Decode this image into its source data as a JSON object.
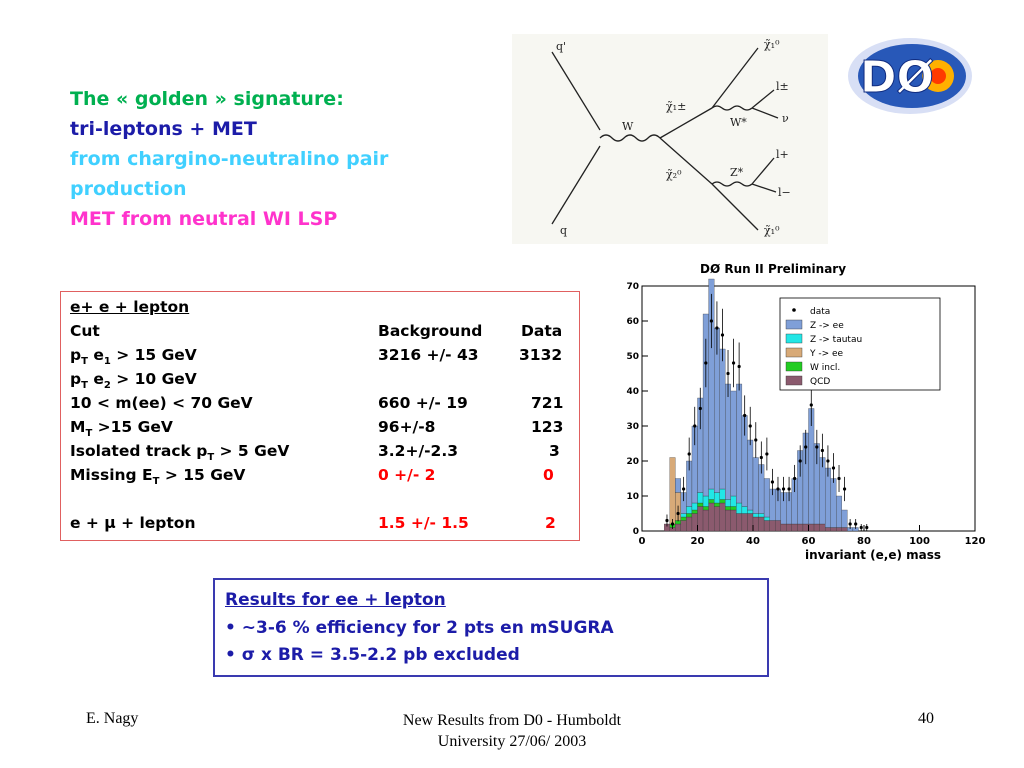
{
  "title_lines": {
    "line1": "The « golden » signature:",
    "line2": "tri-leptons + MET",
    "line3": "from chargino-neutralino pair",
    "line4": "production",
    "line5": "MET from neutral WI LSP"
  },
  "colors": {
    "title_green": "#00b050",
    "title_blue": "#1c1ca8",
    "title_cyan": "#40d0ff",
    "title_magenta": "#ff33cc",
    "highlight_red": "#ff0000",
    "table_border": "#e06060",
    "results_border": "#3a3ab0"
  },
  "feynman": {
    "q_prime": "q'",
    "q": "q",
    "W": "W",
    "chargino": "χ̃₁±",
    "neutralino2": "χ̃₂⁰",
    "W_star": "W*",
    "Z_star": "Z*",
    "lepton_pm": "l±",
    "nu": "ν",
    "l_plus": "l+",
    "l_minus": "l−",
    "chi1_top": "χ̃₁⁰",
    "chi1_bottom": "χ̃₁⁰"
  },
  "logo": {
    "text": "DØ"
  },
  "cut_table": {
    "heading": "e+ e + lepton",
    "col_cut": "Cut",
    "col_bg": "Background",
    "col_data": "Data",
    "rows": [
      {
        "cut_pre": "p",
        "cut_sub1": "T",
        "cut_mid": " e",
        "cut_sub2": "1",
        "cut_post": " > 15 GeV",
        "bg": "3216 +/- 43",
        "data": "3132"
      },
      {
        "cut_pre": "p",
        "cut_sub1": "T",
        "cut_mid": " e",
        "cut_sub2": "2",
        "cut_post": " > 10 GeV",
        "bg": "",
        "data": ""
      },
      {
        "cut": "10 < m(ee) < 70 GeV",
        "bg": "660 +/- 19",
        "data": "721"
      },
      {
        "cut_pre": "M",
        "cut_sub1": "T",
        "cut_post": " >15 GeV",
        "bg": "96+/-8",
        "data": "123"
      },
      {
        "cut_pre": "Isolated track p",
        "cut_sub1": "T",
        "cut_post": " > 5 GeV",
        "bg": "3.2+/-2.3",
        "data": "3"
      },
      {
        "cut_pre": "Missing E",
        "cut_sub1": "T",
        "cut_post": " > 15 GeV",
        "bg": "0 +/- 2",
        "data": "0"
      },
      {
        "cut": "e + μ + lepton",
        "bg": "1.5 +/- 1.5",
        "data": "2"
      }
    ]
  },
  "results": {
    "heading": "Results for ee + lepton",
    "bullet1": "• ~3-6 % efficiency for 2 pts en mSUGRA",
    "bullet2": "• σ x BR = 3.5-2.2 pb excluded"
  },
  "footer": {
    "left": "E. Nagy",
    "center_line1": "New Results from D0 - Humboldt",
    "center_line2": "University  27/06/ 2003",
    "right": "40"
  },
  "chart_data": {
    "type": "bar",
    "title": "DØ Run II Preliminary",
    "xlabel": "invariant (e,e) mass",
    "ylabel": "",
    "xlim": [
      0,
      120
    ],
    "ylim": [
      0,
      70
    ],
    "x_ticks": [
      0,
      20,
      40,
      60,
      80,
      100,
      120
    ],
    "y_ticks": [
      0,
      10,
      20,
      30,
      40,
      50,
      60,
      70
    ],
    "bin_width": 2,
    "bin_start": 0,
    "legend_position": "top-right",
    "series": [
      {
        "name": "data",
        "style": "points",
        "color": "#000000",
        "values": [
          0,
          0,
          0,
          0,
          3,
          2,
          5,
          12,
          22,
          30,
          35,
          48,
          60,
          58,
          56,
          45,
          48,
          47,
          33,
          30,
          26,
          21,
          22,
          14,
          12,
          12,
          12,
          15,
          20,
          24,
          36,
          24,
          23,
          20,
          18,
          15,
          12,
          2,
          2,
          1,
          1,
          0,
          0,
          0,
          0,
          0,
          0,
          0,
          0,
          0,
          0,
          0,
          0,
          0,
          0,
          0,
          0,
          0,
          0,
          0
        ]
      },
      {
        "name": "QCD",
        "color": "#8b5a6e",
        "values": [
          0,
          0,
          0,
          0,
          2,
          1,
          2,
          3,
          4,
          5,
          7,
          6,
          8,
          7,
          8,
          6,
          6,
          5,
          5,
          5,
          4,
          4,
          3,
          3,
          3,
          2,
          2,
          2,
          2,
          2,
          2,
          2,
          2,
          1,
          1,
          1,
          1,
          0,
          0,
          0,
          0,
          0,
          0,
          0,
          0,
          0,
          0,
          0,
          0,
          0,
          0,
          0,
          0,
          0,
          0,
          0,
          0,
          0,
          0,
          0
        ]
      },
      {
        "name": "W incl.",
        "color": "#22cc22",
        "values": [
          0,
          0,
          0,
          0,
          0,
          1,
          1,
          1,
          1,
          1,
          1,
          1,
          1,
          1,
          1,
          1,
          1,
          0,
          0,
          0,
          0,
          0,
          0,
          0,
          0,
          0,
          0,
          0,
          0,
          0,
          0,
          0,
          0,
          0,
          0,
          0,
          0,
          0,
          0,
          0,
          0,
          0,
          0,
          0,
          0,
          0,
          0,
          0,
          0,
          0,
          0,
          0,
          0,
          0,
          0,
          0,
          0,
          0,
          0,
          0
        ]
      },
      {
        "name": "Y -> ee",
        "color": "#d8aa78",
        "values": [
          0,
          0,
          0,
          0,
          0,
          19,
          8,
          0,
          0,
          0,
          0,
          0,
          0,
          0,
          0,
          0,
          0,
          0,
          0,
          0,
          0,
          0,
          0,
          0,
          0,
          0,
          0,
          0,
          0,
          0,
          0,
          0,
          0,
          0,
          0,
          0,
          0,
          0,
          0,
          0,
          0,
          0,
          0,
          0,
          0,
          0,
          0,
          0,
          0,
          0,
          0,
          0,
          0,
          0,
          0,
          0,
          0,
          0,
          0,
          0
        ]
      },
      {
        "name": "Z -> tautau",
        "color": "#22e6e6",
        "values": [
          0,
          0,
          0,
          0,
          0,
          0,
          0,
          1,
          2,
          2,
          3,
          3,
          3,
          3,
          3,
          2,
          3,
          3,
          2,
          1,
          1,
          1,
          1,
          0,
          0,
          0,
          0,
          0,
          0,
          0,
          0,
          0,
          0,
          0,
          0,
          0,
          0,
          0,
          0,
          0,
          0,
          0,
          0,
          0,
          0,
          0,
          0,
          0,
          0,
          0,
          0,
          0,
          0,
          0,
          0,
          0,
          0,
          0,
          0,
          0
        ]
      },
      {
        "name": "Z -> ee",
        "color": "#7f9fd8",
        "values": [
          0,
          0,
          0,
          0,
          0,
          0,
          4,
          6,
          13,
          22,
          27,
          52,
          60,
          47,
          40,
          33,
          30,
          34,
          26,
          20,
          16,
          14,
          11,
          9,
          9,
          9,
          9,
          13,
          21,
          26,
          33,
          23,
          19,
          17,
          14,
          9,
          5,
          1,
          1,
          0,
          0,
          0,
          0,
          0,
          0,
          0,
          0,
          0,
          0,
          0,
          0,
          0,
          0,
          0,
          0,
          0,
          0,
          0,
          0,
          0
        ]
      }
    ]
  }
}
